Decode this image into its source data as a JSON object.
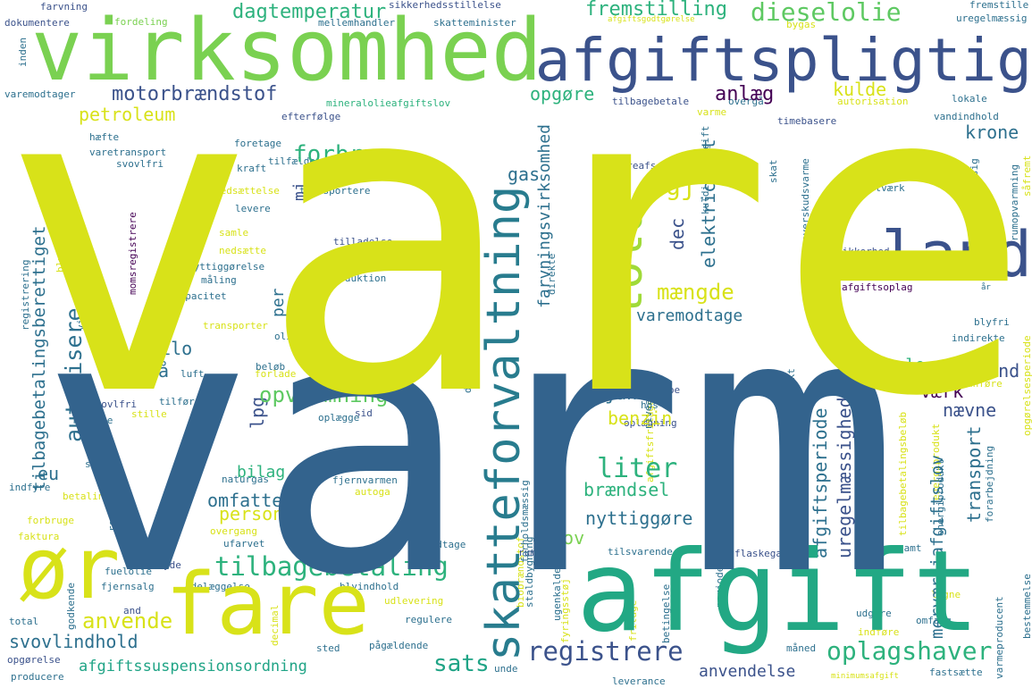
{
  "wordcloud": {
    "words": [
      {
        "text": "vare",
        "color": "#d8e219"
      },
      {
        "text": "varm",
        "color": "#33638d"
      },
      {
        "text": "virksomhed",
        "color": "#7ad151"
      },
      {
        "text": "afgiftspligtig",
        "color": "#3b528b"
      },
      {
        "text": "afgift",
        "color": "#22a884"
      },
      {
        "text": "fare",
        "color": "#d8e219"
      },
      {
        "text": "ør",
        "color": "#d8e219"
      },
      {
        "text": "skatteforvaltning",
        "color": "#287c8e"
      },
      {
        "text": "land",
        "color": "#3b528b"
      },
      {
        "text": "told",
        "color": "#a0da39"
      },
      {
        "text": "dieselolie",
        "color": "#5ec962"
      },
      {
        "text": "motorbrændstof",
        "color": "#3b528b"
      },
      {
        "text": "tilbagebetaling",
        "color": "#2db27d"
      },
      {
        "text": "registrere",
        "color": "#3b528b"
      },
      {
        "text": "oplagshaver",
        "color": "#2db27d"
      },
      {
        "text": "sats",
        "color": "#20a486"
      },
      {
        "text": "liter",
        "color": "#2db27d"
      },
      {
        "text": "forbrug",
        "color": "#2db27d"
      },
      {
        "text": "autorisere",
        "color": "#2d708e"
      },
      {
        "text": "anvende",
        "color": "#d8e219"
      },
      {
        "text": "dagtemperatur",
        "color": "#2db27d"
      },
      {
        "text": "fremstilling",
        "color": "#2db27d"
      },
      {
        "text": "anlæg",
        "color": "#440154"
      },
      {
        "text": "gj",
        "color": "#d8e219"
      },
      {
        "text": "mængde",
        "color": "#d8e219"
      },
      {
        "text": "opvarmning",
        "color": "#5ec962"
      },
      {
        "text": "afgiftssuspensionsordning",
        "color": "#20a486"
      },
      {
        "text": "svovlindhold",
        "color": "#2d708e"
      },
      {
        "text": "anvendelse",
        "color": "#3b528b"
      },
      {
        "text": "petroleum",
        "color": "#d8e219"
      },
      {
        "text": "opgøre",
        "color": "#2db27d"
      },
      {
        "text": "kulde",
        "color": "#d8e219"
      },
      {
        "text": "krone",
        "color": "#2d708e"
      },
      {
        "text": "pct",
        "color": "#2d708e"
      },
      {
        "text": "elektricitet",
        "color": "#2d708e"
      },
      {
        "text": "dec",
        "color": "#3b528b"
      },
      {
        "text": "gas",
        "color": "#2d708e"
      },
      {
        "text": "varemodtage",
        "color": "#2d708e"
      },
      {
        "text": "betale",
        "color": "#2db27d"
      },
      {
        "text": "vand",
        "color": "#3b528b"
      },
      {
        "text": "værk",
        "color": "#440154"
      },
      {
        "text": "nævne",
        "color": "#3b528b"
      },
      {
        "text": "farvningsvirksomhed",
        "color": "#2d708e"
      },
      {
        "text": "tilbagebetalingsberettiget",
        "color": "#2d708e"
      },
      {
        "text": "eu",
        "color": "#2d708e"
      },
      {
        "text": "kilo",
        "color": "#2d708e"
      },
      {
        "text": "nå",
        "color": "#2d708e"
      },
      {
        "text": "jan",
        "color": "#2d708e"
      },
      {
        "text": "benzin",
        "color": "#d8e219"
      },
      {
        "text": "lpg",
        "color": "#3b528b"
      },
      {
        "text": "per",
        "color": "#2d708e"
      },
      {
        "text": "mj",
        "color": "#3b528b"
      },
      {
        "text": "bilag",
        "color": "#2db27d"
      },
      {
        "text": "omfatte",
        "color": "#2d708e"
      },
      {
        "text": "person",
        "color": "#d8e219"
      },
      {
        "text": "brændsel",
        "color": "#2db27d"
      },
      {
        "text": "nyttiggøre",
        "color": "#2d708e"
      },
      {
        "text": "lov",
        "color": "#7ad151"
      },
      {
        "text": "energiindhold",
        "color": "#2d708e"
      },
      {
        "text": "afgiftsperiode",
        "color": "#2d708e"
      },
      {
        "text": "uregelmæssighed",
        "color": "#3b528b"
      },
      {
        "text": "transport",
        "color": "#2d708e"
      },
      {
        "text": "merværdiafgiftslov",
        "color": "#2d708e"
      },
      {
        "text": "farvning",
        "color": "#3b528b"
      },
      {
        "text": "dokumentere",
        "color": "#3b528b"
      },
      {
        "text": "fordeling",
        "color": "#7ad151"
      },
      {
        "text": "mellemhandler",
        "color": "#2d708e"
      },
      {
        "text": "sikkerhedsstillelse",
        "color": "#3b528b"
      },
      {
        "text": "skatteminister",
        "color": "#2d708e"
      },
      {
        "text": "uregelmæssig",
        "color": "#2d708e"
      },
      {
        "text": "bygas",
        "color": "#d8e219"
      },
      {
        "text": "afgiftsgodtgørelse",
        "color": "#d8e219"
      },
      {
        "text": "fremstille",
        "color": "#2d708e"
      },
      {
        "text": "varemodtager",
        "color": "#2d708e"
      },
      {
        "text": "mineralolieafgiftslov",
        "color": "#2db27d"
      },
      {
        "text": "tilbagebetale",
        "color": "#3b528b"
      },
      {
        "text": "varme",
        "color": "#d8e219"
      },
      {
        "text": "overgå",
        "color": "#2d708e"
      },
      {
        "text": "lokale",
        "color": "#2d708e"
      },
      {
        "text": "vandindhold",
        "color": "#2d708e"
      },
      {
        "text": "autorisation",
        "color": "#d8e219"
      },
      {
        "text": "efterfølge",
        "color": "#3b528b"
      },
      {
        "text": "timebasere",
        "color": "#3b528b"
      },
      {
        "text": "hæfte",
        "color": "#2d708e"
      },
      {
        "text": "varetransport",
        "color": "#2d708e"
      },
      {
        "text": "foretage",
        "color": "#2d708e"
      },
      {
        "text": "svovlfri",
        "color": "#2d708e"
      },
      {
        "text": "tilfælde",
        "color": "#2d708e"
      },
      {
        "text": "kraft",
        "color": "#2d708e"
      },
      {
        "text": "vareafsende",
        "color": "#3b528b"
      },
      {
        "text": "kuldioxidafgift",
        "color": "#2d708e"
      },
      {
        "text": "mv",
        "color": "#3b528b"
      },
      {
        "text": "skat",
        "color": "#2d708e"
      },
      {
        "text": "overskudsvarme",
        "color": "#2d708e"
      },
      {
        "text": "erhvervsmæssig",
        "color": "#2d708e"
      },
      {
        "text": "rumopvarmning",
        "color": "#2d708e"
      },
      {
        "text": "kraftværk",
        "color": "#2d708e"
      },
      {
        "text": "såfremt",
        "color": "#d8e219"
      },
      {
        "text": "nedsættelse",
        "color": "#d8e219"
      },
      {
        "text": "transportere",
        "color": "#2d708e"
      },
      {
        "text": "levere",
        "color": "#2d708e"
      },
      {
        "text": "tilladelse",
        "color": "#3b528b"
      },
      {
        "text": "samle",
        "color": "#d8e219"
      },
      {
        "text": "momsregistrere",
        "color": "#440154"
      },
      {
        "text": "blyholdig",
        "color": "#d8e219"
      },
      {
        "text": "registrering",
        "color": "#2d708e"
      },
      {
        "text": "virkningsgrad",
        "color": "#2d708e"
      },
      {
        "text": "nedsætte",
        "color": "#d8e219"
      },
      {
        "text": "nyttiggørelse",
        "color": "#2d708e"
      },
      {
        "text": "måling",
        "color": "#2d708e"
      },
      {
        "text": "kapacitet",
        "color": "#2d708e"
      },
      {
        "text": "regnskab",
        "color": "#2d708e"
      },
      {
        "text": "produktion",
        "color": "#2d708e"
      },
      {
        "text": "direkte",
        "color": "#2d708e"
      },
      {
        "text": "sikkerhed",
        "color": "#3b528b"
      },
      {
        "text": "finde",
        "color": "#2d708e"
      },
      {
        "text": "varmeleverance",
        "color": "#d8e219"
      },
      {
        "text": "afsætte",
        "color": "#d8e219"
      },
      {
        "text": "afgiftsoplag",
        "color": "#440154"
      },
      {
        "text": "bestemme",
        "color": "#d8e219"
      },
      {
        "text": "år",
        "color": "#2d708e"
      },
      {
        "text": "transporter",
        "color": "#d8e219"
      },
      {
        "text": "olie",
        "color": "#2d708e"
      },
      {
        "text": "blyfri",
        "color": "#2d708e"
      },
      {
        "text": "indirekte",
        "color": "#2d708e"
      },
      {
        "text": "opgørelsesperiode",
        "color": "#d8e219"
      },
      {
        "text": "beløb",
        "color": "#2d708e"
      },
      {
        "text": "forlade",
        "color": "#d8e219"
      },
      {
        "text": "luft",
        "color": "#2d708e"
      },
      {
        "text": "dividere",
        "color": "#2d708e"
      },
      {
        "text": "del",
        "color": "#2d708e"
      },
      {
        "text": "anføre",
        "color": "#d8e219"
      },
      {
        "text": "tilføre",
        "color": "#2d708e"
      },
      {
        "text": "svovlfri",
        "color": "#3b528b"
      },
      {
        "text": "forsyne",
        "color": "#2d708e"
      },
      {
        "text": "stille",
        "color": "#d8e219"
      },
      {
        "text": "oplægge",
        "color": "#2d708e"
      },
      {
        "text": "sid",
        "color": "#3b528b"
      },
      {
        "text": "febbe",
        "color": "#3b528b"
      },
      {
        "text": "hos",
        "color": "#2d708e"
      },
      {
        "text": "niveau",
        "color": "#2d708e"
      },
      {
        "text": "afgiftsfritagelse",
        "color": "#d8e219"
      },
      {
        "text": "energiprodukt",
        "color": "#d8e219"
      },
      {
        "text": "olieprodukt",
        "color": "#2d708e"
      },
      {
        "text": "oplægning",
        "color": "#3b528b"
      },
      {
        "text": "tilbagebetalingsbeløb",
        "color": "#d8e219"
      },
      {
        "text": "ske",
        "color": "#2d708e"
      },
      {
        "text": "naturgas",
        "color": "#2d708e"
      },
      {
        "text": "afsende",
        "color": "#d8e219"
      },
      {
        "text": "indfyre",
        "color": "#2d708e"
      },
      {
        "text": "fjernvarmen",
        "color": "#2d708e"
      },
      {
        "text": "autoga",
        "color": "#d8e219"
      },
      {
        "text": "betaling",
        "color": "#d8e219"
      },
      {
        "text": "forholdsmæssig",
        "color": "#2d708e"
      },
      {
        "text": "formål",
        "color": "#d8e219"
      },
      {
        "text": "forarbejdning",
        "color": "#2d708e"
      },
      {
        "text": "energiprodukt",
        "color": "#2d708e"
      },
      {
        "text": "forbruge",
        "color": "#d8e219"
      },
      {
        "text": "faktura",
        "color": "#d8e219"
      },
      {
        "text": "regel",
        "color": "#2d708e"
      },
      {
        "text": "overgang",
        "color": "#d8e219"
      },
      {
        "text": "ufarvet",
        "color": "#2d708e"
      },
      {
        "text": "højst",
        "color": "#2d708e"
      },
      {
        "text": "modtage",
        "color": "#2d708e"
      },
      {
        "text": "rum",
        "color": "#3b528b"
      },
      {
        "text": "tilsvarende",
        "color": "#2d708e"
      },
      {
        "text": "samt",
        "color": "#2d708e"
      },
      {
        "text": "flaskegas",
        "color": "#3b528b"
      },
      {
        "text": "yde",
        "color": "#3b528b"
      },
      {
        "text": "fuelolie",
        "color": "#2d708e"
      },
      {
        "text": "fjernsalg",
        "color": "#2d708e"
      },
      {
        "text": "ødelæggelse",
        "color": "#2d708e"
      },
      {
        "text": "blyindhold",
        "color": "#2d708e"
      },
      {
        "text": "udlevering",
        "color": "#d8e219"
      },
      {
        "text": "staldbygning",
        "color": "#2d708e"
      },
      {
        "text": "ugenkaldelig",
        "color": "#2d708e"
      },
      {
        "text": "biobrændstof",
        "color": "#d8e219"
      },
      {
        "text": "fyringsstøj",
        "color": "#d8e219"
      },
      {
        "text": "periode",
        "color": "#2d708e"
      },
      {
        "text": "fritage",
        "color": "#d8e219"
      },
      {
        "text": "betingelse",
        "color": "#2d708e"
      },
      {
        "text": "udgøre",
        "color": "#2d708e"
      },
      {
        "text": "ligne",
        "color": "#d8e219"
      },
      {
        "text": "indføre",
        "color": "#d8e219"
      },
      {
        "text": "omfang",
        "color": "#2d708e"
      },
      {
        "text": "varmeproducent",
        "color": "#2d708e"
      },
      {
        "text": "bestemmelse",
        "color": "#2d708e"
      },
      {
        "text": "godkende",
        "color": "#2d708e"
      },
      {
        "text": "and",
        "color": "#3b528b"
      },
      {
        "text": "decimal",
        "color": "#d8e219"
      },
      {
        "text": "total",
        "color": "#2d708e"
      },
      {
        "text": "regulere",
        "color": "#2d708e"
      },
      {
        "text": "sted",
        "color": "#2d708e"
      },
      {
        "text": "pågældende",
        "color": "#2d708e"
      },
      {
        "text": "opgørelse",
        "color": "#3b528b"
      },
      {
        "text": "producere",
        "color": "#2d708e"
      },
      {
        "text": "unde",
        "color": "#2d708e"
      },
      {
        "text": "leverance",
        "color": "#2d708e"
      },
      {
        "text": "måned",
        "color": "#2d708e"
      },
      {
        "text": "minimumsafgift",
        "color": "#d8e219"
      },
      {
        "text": "fastsætte",
        "color": "#2d708e"
      },
      {
        "text": "inden",
        "color": "#2d708e"
      }
    ]
  }
}
